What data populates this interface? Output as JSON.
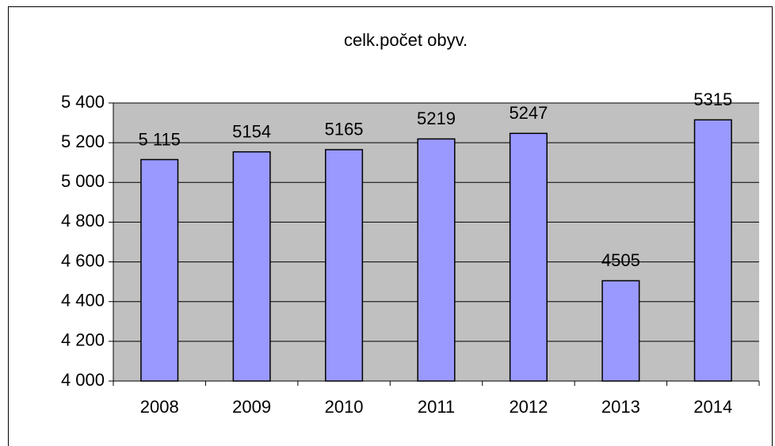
{
  "chart_data": {
    "type": "bar",
    "title": "celk.počet  obyv.",
    "categories": [
      "2008",
      "2009",
      "2010",
      "2011",
      "2012",
      "2013",
      "2014"
    ],
    "values": [
      5115,
      5154,
      5165,
      5219,
      5247,
      4505,
      5315
    ],
    "value_labels": [
      "5 115",
      "5154",
      "5165",
      "5219",
      "5247",
      "4505",
      "5315"
    ],
    "color": "#9999ff",
    "ylim": [
      4000,
      5400
    ],
    "yticks": [
      {
        "value": 4000,
        "label": "4 000"
      },
      {
        "value": 4200,
        "label": "4 200"
      },
      {
        "value": 4400,
        "label": "4 400"
      },
      {
        "value": 4600,
        "label": "4 600"
      },
      {
        "value": 4800,
        "label": "4 800"
      },
      {
        "value": 5000,
        "label": "5 000"
      },
      {
        "value": 5200,
        "label": "5 200"
      },
      {
        "value": 5400,
        "label": "5 400"
      }
    ],
    "grid": true
  }
}
